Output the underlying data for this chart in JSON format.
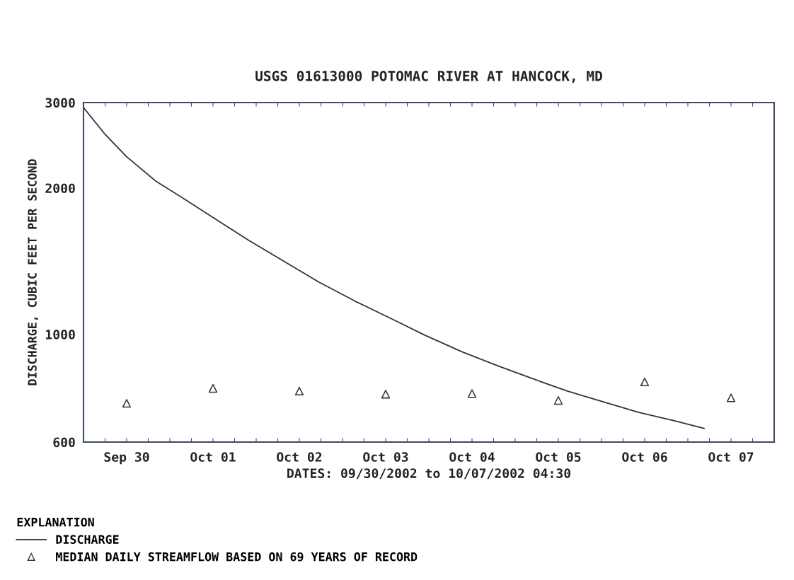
{
  "chart_data": {
    "type": "line",
    "title": "USGS 01613000 POTOMAC RIVER AT HANCOCK, MD",
    "xlabel": "DATES: 09/30/2002 to 10/07/2002 04:30",
    "ylabel": "DISCHARGE, CUBIC FEET PER SECOND",
    "legend_title": "EXPLANATION",
    "legend": "bottom",
    "log": "y",
    "grid": false,
    "xlim": [
      "2002-09-30T00:00",
      "2002-10-08T00:00"
    ],
    "xticks": [
      {
        "value": "2002-09-30T06:00",
        "label": null
      },
      {
        "value": "2002-09-30T12:00",
        "label": "Sep 30"
      },
      {
        "value": "2002-09-30T18:00",
        "label": null
      },
      {
        "value": "2002-10-01T00:00",
        "label": null
      },
      {
        "value": "2002-10-01T06:00",
        "label": null
      },
      {
        "value": "2002-10-01T12:00",
        "label": "Oct 01"
      },
      {
        "value": "2002-10-01T18:00",
        "label": null
      },
      {
        "value": "2002-10-02T00:00",
        "label": null
      },
      {
        "value": "2002-10-02T06:00",
        "label": null
      },
      {
        "value": "2002-10-02T12:00",
        "label": "Oct 02"
      },
      {
        "value": "2002-10-02T18:00",
        "label": null
      },
      {
        "value": "2002-10-03T00:00",
        "label": null
      },
      {
        "value": "2002-10-03T06:00",
        "label": null
      },
      {
        "value": "2002-10-03T12:00",
        "label": "Oct 03"
      },
      {
        "value": "2002-10-03T18:00",
        "label": null
      },
      {
        "value": "2002-10-04T00:00",
        "label": null
      },
      {
        "value": "2002-10-04T06:00",
        "label": null
      },
      {
        "value": "2002-10-04T12:00",
        "label": "Oct 04"
      },
      {
        "value": "2002-10-04T18:00",
        "label": null
      },
      {
        "value": "2002-10-05T00:00",
        "label": null
      },
      {
        "value": "2002-10-05T06:00",
        "label": null
      },
      {
        "value": "2002-10-05T12:00",
        "label": "Oct 05"
      },
      {
        "value": "2002-10-05T18:00",
        "label": null
      },
      {
        "value": "2002-10-06T00:00",
        "label": null
      },
      {
        "value": "2002-10-06T06:00",
        "label": null
      },
      {
        "value": "2002-10-06T12:00",
        "label": "Oct 06"
      },
      {
        "value": "2002-10-06T18:00",
        "label": null
      },
      {
        "value": "2002-10-07T00:00",
        "label": null
      },
      {
        "value": "2002-10-07T06:00",
        "label": null
      },
      {
        "value": "2002-10-07T12:00",
        "label": "Oct 07"
      },
      {
        "value": "2002-10-07T18:00",
        "label": null
      }
    ],
    "ylim": [
      600,
      3000
    ],
    "yticks": [
      600,
      1000,
      2000,
      3000
    ],
    "series": [
      {
        "name": "DISCHARGE",
        "color": "#2e3440",
        "marker": "none",
        "line_style": "solid",
        "x": [
          "2002-09-30T00:00",
          "2002-09-30T06:00",
          "2002-09-30T12:00",
          "2002-09-30T20:00",
          "2002-10-01T04:00",
          "2002-10-01T12:00",
          "2002-10-01T22:00",
          "2002-10-02T08:00",
          "2002-10-02T17:30",
          "2002-10-03T03:30",
          "2002-10-03T13:15",
          "2002-10-03T23:00",
          "2002-10-04T09:00",
          "2002-10-04T19:00",
          "2002-10-05T04:45",
          "2002-10-05T14:30",
          "2002-10-06T00:30",
          "2002-10-06T10:15",
          "2002-10-06T20:15",
          "2002-10-07T04:30"
        ],
        "values": [
          2930,
          2580,
          2320,
          2070,
          1900,
          1740,
          1560,
          1410,
          1280,
          1170,
          1080,
          995,
          922,
          862,
          811,
          764,
          726,
          691,
          664,
          640
        ]
      },
      {
        "name": "MEDIAN DAILY STREAMFLOW BASED ON 69 YEARS OF RECORD",
        "type": "scatter",
        "color": "#2e3440",
        "marker": "triangle",
        "x": [
          "2002-09-30T12:00",
          "2002-10-01T12:00",
          "2002-10-02T12:00",
          "2002-10-03T12:00",
          "2002-10-04T12:00",
          "2002-10-05T12:00",
          "2002-10-06T12:00",
          "2002-10-07T12:00"
        ],
        "values": [
          721,
          774,
          764,
          753,
          755,
          731,
          798,
          740
        ]
      }
    ]
  }
}
